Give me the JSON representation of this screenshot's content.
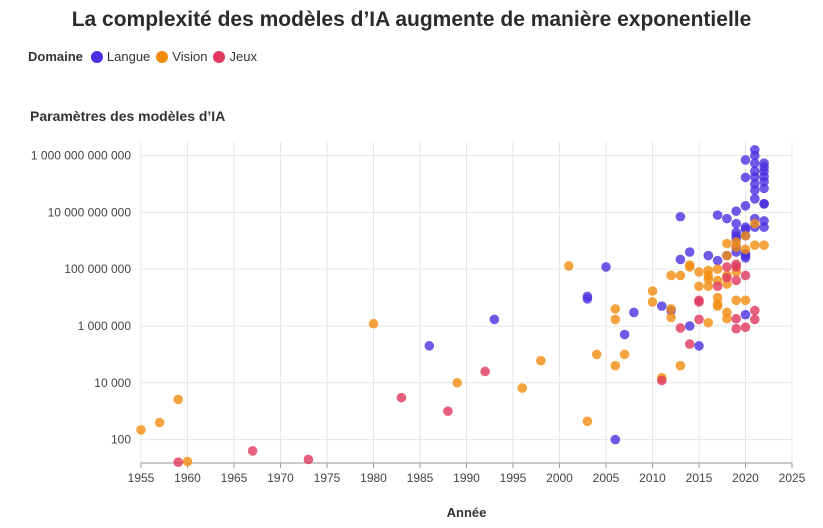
{
  "chart_data": {
    "type": "scatter",
    "title": "La complexité des modèles d’IA augmente de manière exponentielle",
    "legend": {
      "label": "Domaine",
      "entries": [
        {
          "name": "Langue",
          "color": "#4b2fe0"
        },
        {
          "name": "Vision",
          "color": "#f28c0f"
        },
        {
          "name": "Jeux",
          "color": "#e0385e"
        }
      ]
    },
    "ylabel": "Paramètres des modèles d’IA",
    "xlabel": "Année",
    "yscale": "log",
    "xlim": [
      1955,
      2025
    ],
    "ylim": [
      15,
      3000000000000
    ],
    "xticks": [
      1955,
      1960,
      1965,
      1970,
      1975,
      1980,
      1985,
      1990,
      1995,
      2000,
      2005,
      2010,
      2015,
      2020,
      2025
    ],
    "yticks": [
      {
        "value": 100,
        "label": "100"
      },
      {
        "value": 10000,
        "label": "10 000"
      },
      {
        "value": 1000000,
        "label": "1 000 000"
      },
      {
        "value": 100000000,
        "label": "100 000 000"
      },
      {
        "value": 10000000000,
        "label": "10 000 000 000"
      },
      {
        "value": 1000000000000,
        "label": "1 000 000 000 000"
      }
    ],
    "series": [
      {
        "name": "Langue",
        "color": "#4b2fe0",
        "points": [
          [
            1986,
            200000
          ],
          [
            1993,
            1700000
          ],
          [
            2003,
            9000000
          ],
          [
            2003,
            11000000
          ],
          [
            2005,
            120000000
          ],
          [
            2006,
            100
          ],
          [
            2007,
            500000
          ],
          [
            2008,
            3000000
          ],
          [
            2011,
            5000000
          ],
          [
            2012,
            3500000
          ],
          [
            2013,
            7000000000
          ],
          [
            2013,
            220000000
          ],
          [
            2014,
            1000000
          ],
          [
            2014,
            400000000
          ],
          [
            2015,
            200000
          ],
          [
            2016,
            300000000
          ],
          [
            2017,
            8000000000
          ],
          [
            2017,
            200000000
          ],
          [
            2018,
            6000000000
          ],
          [
            2018,
            300000000
          ],
          [
            2019,
            1500000000
          ],
          [
            2019,
            400000000
          ],
          [
            2019,
            11000000000
          ],
          [
            2019,
            4000000000
          ],
          [
            2019,
            600000000
          ],
          [
            2019,
            1200000000
          ],
          [
            2019,
            2000000000
          ],
          [
            2020,
            700000000000
          ],
          [
            2020,
            170000000000
          ],
          [
            2020,
            17000000000
          ],
          [
            2020,
            3000000000
          ],
          [
            2020,
            2500000000
          ],
          [
            2020,
            350000000
          ],
          [
            2020,
            1500000000
          ],
          [
            2020,
            250000000
          ],
          [
            2020,
            2500000
          ],
          [
            2020,
            300000000
          ],
          [
            2021,
            1600000000000
          ],
          [
            2021,
            1000000000000
          ],
          [
            2021,
            530000000000
          ],
          [
            2021,
            280000000000
          ],
          [
            2021,
            175000000000
          ],
          [
            2021,
            100000000000
          ],
          [
            2021,
            60000000000
          ],
          [
            2021,
            30000000000
          ],
          [
            2021,
            6000000000
          ],
          [
            2021,
            3000000000
          ],
          [
            2022,
            540000000000
          ],
          [
            2022,
            400000000000
          ],
          [
            2022,
            280000000000
          ],
          [
            2022,
            180000000000
          ],
          [
            2022,
            120000000000
          ],
          [
            2022,
            70000000000
          ],
          [
            2022,
            20000000000
          ],
          [
            2022,
            20000000000
          ],
          [
            2022,
            5000000000
          ],
          [
            2022,
            3000000000
          ]
        ]
      },
      {
        "name": "Vision",
        "color": "#f28c0f",
        "points": [
          [
            1955,
            220
          ],
          [
            1957,
            400
          ],
          [
            1959,
            2600
          ],
          [
            1960,
            17
          ],
          [
            1980,
            1200000
          ],
          [
            1989,
            10000
          ],
          [
            1996,
            6500
          ],
          [
            1998,
            60000
          ],
          [
            2001,
            130000000
          ],
          [
            2003,
            440
          ],
          [
            2004,
            100000
          ],
          [
            2006,
            40000
          ],
          [
            2006,
            1700000
          ],
          [
            2006,
            4000000
          ],
          [
            2007,
            100000
          ],
          [
            2010,
            7000000
          ],
          [
            2010,
            17000000
          ],
          [
            2011,
            15000
          ],
          [
            2012,
            60000000
          ],
          [
            2012,
            4000000
          ],
          [
            2012,
            2000000
          ],
          [
            2013,
            40000
          ],
          [
            2013,
            60000000
          ],
          [
            2014,
            120000000
          ],
          [
            2014,
            140000000
          ],
          [
            2015,
            25000000
          ],
          [
            2015,
            80000000
          ],
          [
            2016,
            1300000
          ],
          [
            2016,
            25000000
          ],
          [
            2016,
            45000000
          ],
          [
            2016,
            60000000
          ],
          [
            2016,
            90000000
          ],
          [
            2017,
            10000000
          ],
          [
            2017,
            6000000
          ],
          [
            2017,
            5000000
          ],
          [
            2017,
            40000000
          ],
          [
            2017,
            100000000
          ],
          [
            2018,
            3000000
          ],
          [
            2018,
            1800000
          ],
          [
            2018,
            30000000
          ],
          [
            2018,
            60000000
          ],
          [
            2018,
            300000000
          ],
          [
            2018,
            800000000
          ],
          [
            2019,
            8000000
          ],
          [
            2019,
            80000000
          ],
          [
            2019,
            600000000
          ],
          [
            2019,
            900000000
          ],
          [
            2020,
            8000000
          ],
          [
            2020,
            500000000
          ],
          [
            2020,
            1500000000
          ],
          [
            2021,
            700000000
          ],
          [
            2021,
            4000000000
          ],
          [
            2022,
            700000000
          ]
        ]
      },
      {
        "name": "Jeux",
        "color": "#e0385e",
        "points": [
          [
            1959,
            16
          ],
          [
            1967,
            40
          ],
          [
            1973,
            20
          ],
          [
            1983,
            3000
          ],
          [
            1988,
            1000
          ],
          [
            1992,
            25000
          ],
          [
            2011,
            12000
          ],
          [
            2013,
            850000
          ],
          [
            2014,
            230000
          ],
          [
            2015,
            1700000
          ],
          [
            2015,
            7000000
          ],
          [
            2015,
            8000000
          ],
          [
            2017,
            25000000
          ],
          [
            2018,
            50000000
          ],
          [
            2018,
            120000000
          ],
          [
            2019,
            800000
          ],
          [
            2019,
            1800000
          ],
          [
            2019,
            40000000
          ],
          [
            2019,
            120000000
          ],
          [
            2019,
            150000000
          ],
          [
            2020,
            900000
          ],
          [
            2020,
            60000000
          ],
          [
            2021,
            1700000
          ],
          [
            2021,
            3500000
          ]
        ]
      }
    ]
  }
}
